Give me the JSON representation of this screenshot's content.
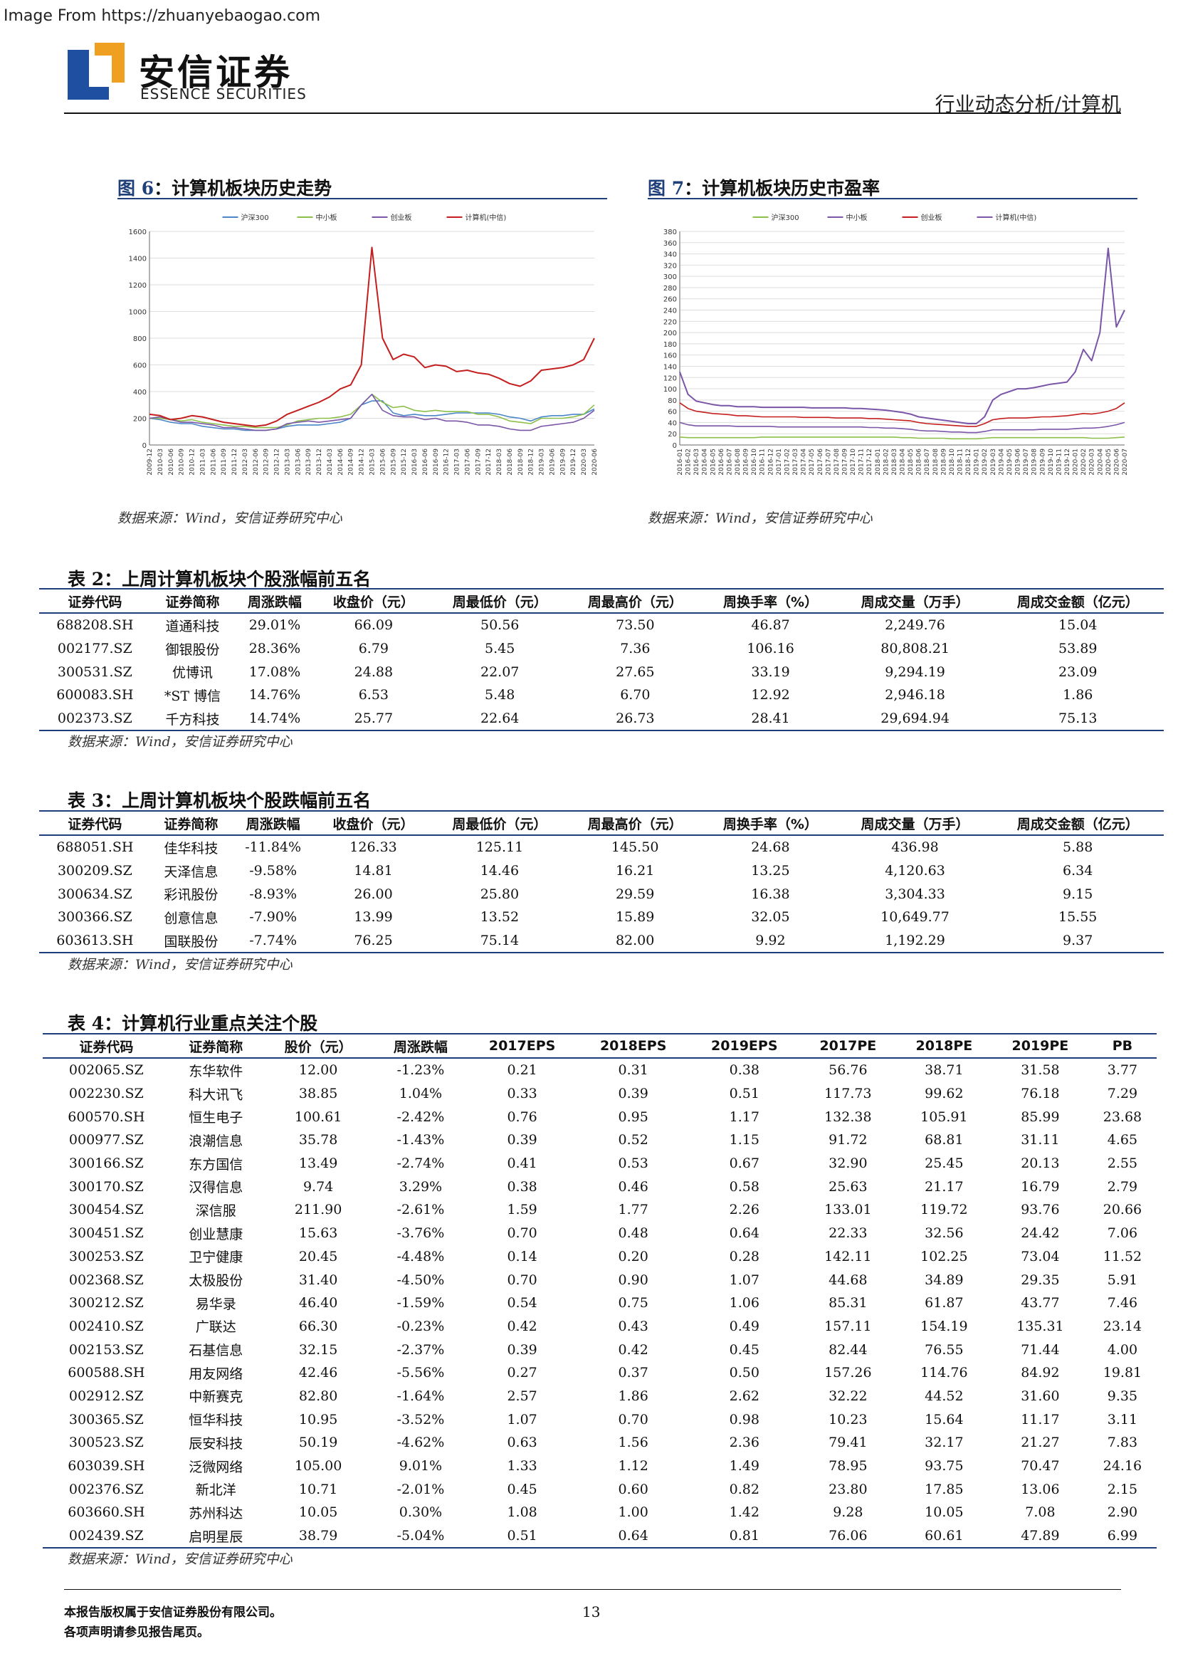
{
  "watermark": "Image From https://zhuanyebaogao.com",
  "brand": {
    "cn": "安信证券",
    "en": "ESSENCE SECURITIES"
  },
  "breadcrumb": "行业动态分析/计算机",
  "figures": [
    {
      "num": "图 6",
      "title": "计算机板块历史走势",
      "source": "数据来源：Wind，安信证券研究中心"
    },
    {
      "num": "图 7",
      "title": "计算机板块历史市盈率",
      "source": "数据来源：Wind，安信证券研究中心"
    }
  ],
  "chart_data": [
    {
      "type": "line",
      "legend": [
        "沪深300",
        "中小板",
        "创业板",
        "计算机(中信)"
      ],
      "colors": [
        "#4a86c8",
        "#8cbf4a",
        "#7a55a8",
        "#c41e1e"
      ],
      "ylim": [
        0,
        1600
      ],
      "yticks": [
        0,
        200,
        400,
        600,
        800,
        1000,
        1200,
        1400,
        1600
      ],
      "xticks": [
        "2009-12",
        "2010-03",
        "2010-06",
        "2010-09",
        "2010-12",
        "2011-03",
        "2011-06",
        "2011-09",
        "2011-12",
        "2012-03",
        "2012-06",
        "2012-09",
        "2012-12",
        "2013-03",
        "2013-06",
        "2013-09",
        "2013-12",
        "2014-03",
        "2014-06",
        "2014-09",
        "2014-12",
        "2015-03",
        "2015-06",
        "2015-09",
        "2015-12",
        "2016-03",
        "2016-06",
        "2016-09",
        "2016-12",
        "2017-03",
        "2017-06",
        "2017-09",
        "2017-12",
        "2018-03",
        "2018-06",
        "2018-09",
        "2018-12",
        "2019-03",
        "2019-06",
        "2019-09",
        "2019-12",
        "2020-03",
        "2020-06"
      ],
      "series": [
        {
          "name": "沪深300",
          "values": [
            200,
            190,
            170,
            160,
            160,
            140,
            130,
            120,
            120,
            110,
            110,
            110,
            120,
            140,
            150,
            150,
            150,
            160,
            170,
            200,
            300,
            330,
            330,
            240,
            220,
            230,
            220,
            220,
            230,
            240,
            240,
            240,
            240,
            230,
            210,
            200,
            180,
            210,
            220,
            220,
            230,
            230,
            270
          ]
        },
        {
          "name": "中小板",
          "values": [
            200,
            200,
            190,
            180,
            190,
            170,
            160,
            150,
            140,
            140,
            130,
            130,
            130,
            150,
            180,
            190,
            200,
            200,
            210,
            230,
            300,
            380,
            320,
            280,
            290,
            260,
            250,
            260,
            250,
            250,
            250,
            230,
            230,
            210,
            180,
            170,
            160,
            200,
            200,
            200,
            210,
            230,
            300
          ]
        },
        {
          "name": "创业板",
          "values": [
            200,
            210,
            190,
            170,
            170,
            160,
            150,
            130,
            130,
            120,
            110,
            110,
            120,
            160,
            170,
            180,
            170,
            180,
            190,
            200,
            300,
            380,
            260,
            220,
            210,
            210,
            190,
            200,
            180,
            180,
            170,
            150,
            150,
            140,
            120,
            110,
            110,
            140,
            150,
            160,
            170,
            200,
            260
          ]
        },
        {
          "name": "计算机(中信)",
          "values": [
            230,
            220,
            190,
            200,
            220,
            210,
            190,
            170,
            160,
            150,
            140,
            150,
            180,
            230,
            260,
            290,
            320,
            360,
            420,
            450,
            600,
            1480,
            800,
            640,
            680,
            660,
            580,
            600,
            590,
            550,
            560,
            540,
            530,
            500,
            460,
            440,
            480,
            560,
            570,
            580,
            600,
            640,
            800
          ]
        }
      ]
    },
    {
      "type": "line",
      "legend": [
        "沪深300",
        "中小板",
        "创业板",
        "计算机(中信)"
      ],
      "colors": [
        "#8cbf4a",
        "#7a55a8",
        "#c41e1e",
        "#7a55a8"
      ],
      "ylim": [
        0,
        380
      ],
      "yticks": [
        0,
        20,
        40,
        60,
        80,
        100,
        120,
        140,
        160,
        180,
        200,
        220,
        240,
        260,
        280,
        300,
        320,
        340,
        360,
        380
      ],
      "xticks": [
        "2016-01",
        "2016-02",
        "2016-03",
        "2016-04",
        "2016-05",
        "2016-06",
        "2016-07",
        "2016-08",
        "2016-09",
        "2016-10",
        "2016-11",
        "2016-12",
        "2017-01",
        "2017-02",
        "2017-03",
        "2017-04",
        "2017-05",
        "2017-06",
        "2017-07",
        "2017-08",
        "2017-09",
        "2017-10",
        "2017-11",
        "2017-12",
        "2018-01",
        "2018-02",
        "2018-03",
        "2018-04",
        "2018-05",
        "2018-06",
        "2018-07",
        "2018-08",
        "2018-09",
        "2018-10",
        "2018-11",
        "2018-12",
        "2019-01",
        "2019-02",
        "2019-03",
        "2019-04",
        "2019-05",
        "2019-06",
        "2019-07",
        "2019-08",
        "2019-09",
        "2019-10",
        "2019-11",
        "2019-12",
        "2020-01",
        "2020-02",
        "2020-03",
        "2020-04",
        "2020-05",
        "2020-06",
        "2020-07"
      ],
      "series": [
        {
          "name": "沪深300",
          "values": [
            14,
            13,
            13,
            13,
            13,
            13,
            13,
            13,
            13,
            13,
            14,
            14,
            14,
            14,
            14,
            14,
            14,
            14,
            14,
            14,
            14,
            14,
            14,
            14,
            14,
            14,
            14,
            13,
            13,
            12,
            12,
            12,
            12,
            11,
            11,
            11,
            11,
            12,
            13,
            13,
            13,
            13,
            13,
            13,
            13,
            13,
            13,
            13,
            13,
            13,
            12,
            12,
            12,
            13,
            14
          ]
        },
        {
          "name": "中小板",
          "values": [
            40,
            36,
            34,
            34,
            34,
            34,
            34,
            33,
            33,
            33,
            33,
            33,
            32,
            32,
            32,
            32,
            32,
            32,
            32,
            32,
            32,
            32,
            32,
            31,
            31,
            30,
            30,
            29,
            28,
            26,
            25,
            25,
            24,
            23,
            23,
            22,
            22,
            24,
            27,
            27,
            27,
            27,
            27,
            27,
            28,
            28,
            28,
            28,
            29,
            30,
            30,
            31,
            33,
            36,
            40
          ]
        },
        {
          "name": "创业板",
          "values": [
            75,
            65,
            60,
            58,
            56,
            55,
            54,
            52,
            52,
            51,
            50,
            50,
            50,
            50,
            50,
            49,
            49,
            49,
            49,
            48,
            48,
            48,
            48,
            47,
            47,
            46,
            45,
            44,
            43,
            40,
            38,
            37,
            36,
            35,
            34,
            33,
            33,
            38,
            45,
            47,
            48,
            48,
            48,
            49,
            50,
            50,
            51,
            52,
            54,
            56,
            55,
            57,
            60,
            65,
            75
          ]
        },
        {
          "name": "计算机(中信)",
          "values": [
            130,
            90,
            78,
            75,
            72,
            70,
            70,
            68,
            68,
            68,
            67,
            67,
            67,
            67,
            67,
            67,
            66,
            66,
            66,
            66,
            66,
            65,
            65,
            64,
            63,
            62,
            60,
            58,
            55,
            50,
            48,
            46,
            44,
            42,
            40,
            38,
            38,
            50,
            80,
            90,
            95,
            100,
            100,
            102,
            105,
            108,
            110,
            112,
            130,
            170,
            150,
            200,
            350,
            210,
            240
          ]
        }
      ]
    }
  ],
  "table2": {
    "title_num": "表 2",
    "title": "上周计算机板块个股涨幅前五名",
    "headers": [
      "证券代码",
      "证券简称",
      "周涨跌幅",
      "收盘价（元）",
      "周最低价（元）",
      "周最高价（元）",
      "周换手率（%）",
      "周成交量（万手）",
      "周成交金额（亿元）"
    ],
    "rows": [
      [
        "688208.SH",
        "道通科技",
        "29.01%",
        "66.09",
        "50.56",
        "73.50",
        "46.87",
        "2,249.76",
        "15.04"
      ],
      [
        "002177.SZ",
        "御银股份",
        "28.36%",
        "6.79",
        "5.45",
        "7.36",
        "106.16",
        "80,808.21",
        "53.89"
      ],
      [
        "300531.SZ",
        "优博讯",
        "17.08%",
        "24.88",
        "22.07",
        "27.65",
        "33.19",
        "9,294.19",
        "23.09"
      ],
      [
        "600083.SH",
        "*ST 博信",
        "14.76%",
        "6.53",
        "5.48",
        "6.70",
        "12.92",
        "2,946.18",
        "1.86"
      ],
      [
        "002373.SZ",
        "千方科技",
        "14.74%",
        "25.77",
        "22.64",
        "26.73",
        "28.41",
        "29,694.94",
        "75.13"
      ]
    ],
    "source": "数据来源：Wind，安信证券研究中心"
  },
  "table3": {
    "title_num": "表 3",
    "title": "上周计算机板块个股跌幅前五名",
    "headers": [
      "证券代码",
      "证券简称",
      "周涨跌幅",
      "收盘价（元）",
      "周最低价（元）",
      "周最高价（元）",
      "周换手率（%）",
      "周成交量（万手）",
      "周成交金额（亿元）"
    ],
    "rows": [
      [
        "688051.SH",
        "佳华科技",
        "-11.84%",
        "126.33",
        "125.11",
        "145.50",
        "24.68",
        "436.98",
        "5.88"
      ],
      [
        "300209.SZ",
        "天泽信息",
        "-9.58%",
        "14.81",
        "14.46",
        "16.21",
        "13.25",
        "4,120.63",
        "6.34"
      ],
      [
        "300634.SZ",
        "彩讯股份",
        "-8.93%",
        "26.00",
        "25.80",
        "29.59",
        "16.38",
        "3,304.33",
        "9.15"
      ],
      [
        "300366.SZ",
        "创意信息",
        "-7.90%",
        "13.99",
        "13.52",
        "15.89",
        "32.05",
        "10,649.77",
        "15.55"
      ],
      [
        "603613.SH",
        "国联股份",
        "-7.74%",
        "76.25",
        "75.14",
        "82.00",
        "9.92",
        "1,192.29",
        "9.37"
      ]
    ],
    "source": "数据来源：Wind，安信证券研究中心"
  },
  "table4": {
    "title_num": "表 4",
    "title": "计算机行业重点关注个股",
    "headers": [
      "证券代码",
      "证券简称",
      "股价（元）",
      "周涨跌幅",
      "2017EPS",
      "2018EPS",
      "2019EPS",
      "2017PE",
      "2018PE",
      "2019PE",
      "PB"
    ],
    "rows": [
      [
        "002065.SZ",
        "东华软件",
        "12.00",
        "-1.23%",
        "0.21",
        "0.31",
        "0.38",
        "56.76",
        "38.71",
        "31.58",
        "3.77"
      ],
      [
        "002230.SZ",
        "科大讯飞",
        "38.85",
        "1.04%",
        "0.33",
        "0.39",
        "0.51",
        "117.73",
        "99.62",
        "76.18",
        "7.29"
      ],
      [
        "600570.SH",
        "恒生电子",
        "100.61",
        "-2.42%",
        "0.76",
        "0.95",
        "1.17",
        "132.38",
        "105.91",
        "85.99",
        "23.68"
      ],
      [
        "000977.SZ",
        "浪潮信息",
        "35.78",
        "-1.43%",
        "0.39",
        "0.52",
        "1.15",
        "91.72",
        "68.81",
        "31.11",
        "4.65"
      ],
      [
        "300166.SZ",
        "东方国信",
        "13.49",
        "-2.74%",
        "0.41",
        "0.53",
        "0.67",
        "32.90",
        "25.45",
        "20.13",
        "2.55"
      ],
      [
        "300170.SZ",
        "汉得信息",
        "9.74",
        "3.29%",
        "0.38",
        "0.46",
        "0.58",
        "25.63",
        "21.17",
        "16.79",
        "2.79"
      ],
      [
        "300454.SZ",
        "深信服",
        "211.90",
        "-2.61%",
        "1.59",
        "1.77",
        "2.26",
        "133.01",
        "119.72",
        "93.76",
        "20.66"
      ],
      [
        "300451.SZ",
        "创业慧康",
        "15.63",
        "-3.76%",
        "0.70",
        "0.48",
        "0.64",
        "22.33",
        "32.56",
        "24.42",
        "7.06"
      ],
      [
        "300253.SZ",
        "卫宁健康",
        "20.45",
        "-4.48%",
        "0.14",
        "0.20",
        "0.28",
        "142.11",
        "102.25",
        "73.04",
        "11.52"
      ],
      [
        "002368.SZ",
        "太极股份",
        "31.40",
        "-4.50%",
        "0.70",
        "0.90",
        "1.07",
        "44.68",
        "34.89",
        "29.35",
        "5.91"
      ],
      [
        "300212.SZ",
        "易华录",
        "46.40",
        "-1.59%",
        "0.54",
        "0.75",
        "1.06",
        "85.31",
        "61.87",
        "43.77",
        "7.46"
      ],
      [
        "002410.SZ",
        "广联达",
        "66.30",
        "-0.23%",
        "0.42",
        "0.43",
        "0.49",
        "157.11",
        "154.19",
        "135.31",
        "23.14"
      ],
      [
        "002153.SZ",
        "石基信息",
        "32.15",
        "-2.37%",
        "0.39",
        "0.42",
        "0.45",
        "82.44",
        "76.55",
        "71.44",
        "4.00"
      ],
      [
        "600588.SH",
        "用友网络",
        "42.46",
        "-5.56%",
        "0.27",
        "0.37",
        "0.50",
        "157.26",
        "114.76",
        "84.92",
        "19.81"
      ],
      [
        "002912.SZ",
        "中新赛克",
        "82.80",
        "-1.64%",
        "2.57",
        "1.86",
        "2.62",
        "32.22",
        "44.52",
        "31.60",
        "9.35"
      ],
      [
        "300365.SZ",
        "恒华科技",
        "10.95",
        "-3.52%",
        "1.07",
        "0.70",
        "0.98",
        "10.23",
        "15.64",
        "11.17",
        "3.11"
      ],
      [
        "300523.SZ",
        "辰安科技",
        "50.19",
        "-4.62%",
        "0.63",
        "1.56",
        "2.36",
        "79.41",
        "32.17",
        "21.27",
        "7.83"
      ],
      [
        "603039.SH",
        "泛微网络",
        "105.00",
        "9.01%",
        "1.33",
        "1.12",
        "1.49",
        "78.95",
        "93.75",
        "70.47",
        "24.16"
      ],
      [
        "002376.SZ",
        "新北洋",
        "10.71",
        "-2.01%",
        "0.45",
        "0.60",
        "0.82",
        "23.80",
        "17.85",
        "13.06",
        "2.15"
      ],
      [
        "603660.SH",
        "苏州科达",
        "10.05",
        "0.30%",
        "1.08",
        "1.00",
        "1.42",
        "9.28",
        "10.05",
        "7.08",
        "2.90"
      ],
      [
        "002439.SZ",
        "启明星辰",
        "38.79",
        "-5.04%",
        "0.51",
        "0.64",
        "0.81",
        "76.06",
        "60.61",
        "47.89",
        "6.99"
      ]
    ],
    "source": "数据来源：Wind，安信证券研究中心"
  },
  "footer": {
    "line1": "本报告版权属于安信证券股份有限公司。",
    "line2": "各项声明请参见报告尾页。",
    "page": "13"
  }
}
